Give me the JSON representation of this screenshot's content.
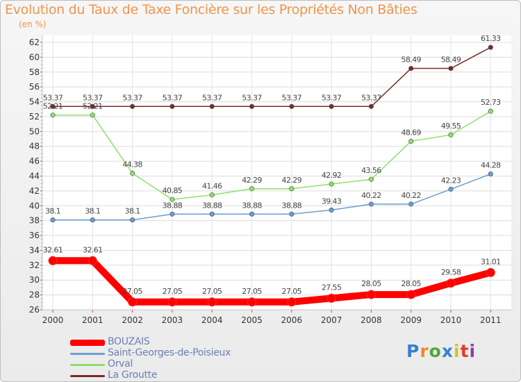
{
  "chart_data": {
    "type": "line",
    "title": "Evolution du Taux de Taxe Foncière sur les Propriétés Non Bâties",
    "subtitle": "(en %)",
    "categories": [
      "2000",
      "2001",
      "2002",
      "2003",
      "2004",
      "2005",
      "2006",
      "2007",
      "2008",
      "2009",
      "2010",
      "2011"
    ],
    "ylim": [
      26,
      62
    ],
    "ytick_step": 2,
    "yticks": [
      "26",
      "28",
      "30",
      "32",
      "34",
      "36",
      "38",
      "40",
      "42",
      "44",
      "46",
      "48",
      "50",
      "52",
      "54",
      "56",
      "58",
      "60",
      "62"
    ],
    "series": [
      {
        "name": "BOUZAIS",
        "color": "#ff0000",
        "values": [
          32.61,
          32.61,
          27.05,
          27.05,
          27.05,
          27.05,
          27.05,
          27.55,
          28.05,
          28.05,
          29.58,
          31.01
        ],
        "labels": [
          "32.61",
          "32.61",
          "27.05",
          "27.05",
          "27.05",
          "27.05",
          "27.05",
          "27.55",
          "28.05",
          "28.05",
          "29.58",
          "31.01"
        ]
      },
      {
        "name": "Saint-Georges-de-Poisieux",
        "color": "#6b9ed4",
        "values": [
          38.1,
          38.1,
          38.1,
          38.88,
          38.88,
          38.88,
          38.88,
          39.43,
          40.22,
          40.22,
          42.23,
          44.28
        ],
        "labels": [
          "38.1",
          "38.1",
          "38.1",
          "38.88",
          "38.88",
          "38.88",
          "38.88",
          "39.43",
          "40.22",
          "40.22",
          "42.23",
          "44.28"
        ]
      },
      {
        "name": "Orval",
        "color": "#8fe06a",
        "values": [
          52.21,
          52.21,
          44.38,
          40.85,
          41.46,
          42.29,
          42.29,
          42.92,
          43.56,
          48.69,
          49.55,
          52.73
        ],
        "labels": [
          "52.21",
          "52.21",
          "44.38",
          "40.85",
          "41.46",
          "42.29",
          "42.29",
          "42.92",
          "43.56",
          "48.69",
          "49.55",
          "52.73"
        ]
      },
      {
        "name": "La Groutte",
        "color": "#7a2a2a",
        "values": [
          53.37,
          53.37,
          53.37,
          53.37,
          53.37,
          53.37,
          53.37,
          53.37,
          53.37,
          58.49,
          58.49,
          61.33
        ],
        "labels": [
          "53.37",
          "53.37",
          "53.37",
          "53.37",
          "53.37",
          "53.37",
          "53.37",
          "53.37",
          "53.37",
          "58.49",
          "58.49",
          "61.33"
        ]
      }
    ]
  },
  "branding": {
    "logo_text": "Proxiti",
    "logo_colors": [
      "#3b7fd0",
      "#f08a24",
      "#4aa83c",
      "#3b7fd0",
      "#d9c020",
      "#e23a2a",
      "#8b3fb0"
    ]
  }
}
